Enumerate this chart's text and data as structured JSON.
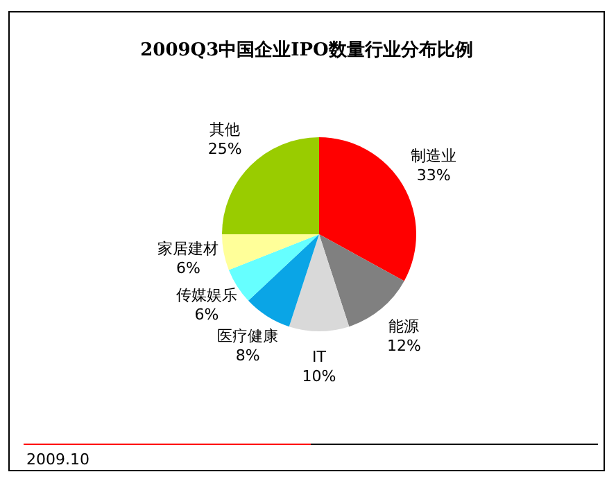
{
  "chart_data": {
    "type": "pie",
    "title": "2009Q3中国企业IPO数量行业分布比例",
    "categories": [
      "制造业",
      "能源",
      "IT",
      "医疗健康",
      "传媒娱乐",
      "家居建材",
      "其他"
    ],
    "values": [
      33,
      12,
      10,
      8,
      6,
      6,
      25
    ],
    "colors": [
      "#ff0000",
      "#808080",
      "#d9d9d9",
      "#0aa5e6",
      "#66ffff",
      "#ffff99",
      "#99cc00"
    ],
    "value_labels": [
      "33%",
      "12%",
      "10%",
      "8%",
      "6%",
      "6%",
      "25%"
    ],
    "annotations": [
      "2009.10"
    ],
    "legend": false
  }
}
